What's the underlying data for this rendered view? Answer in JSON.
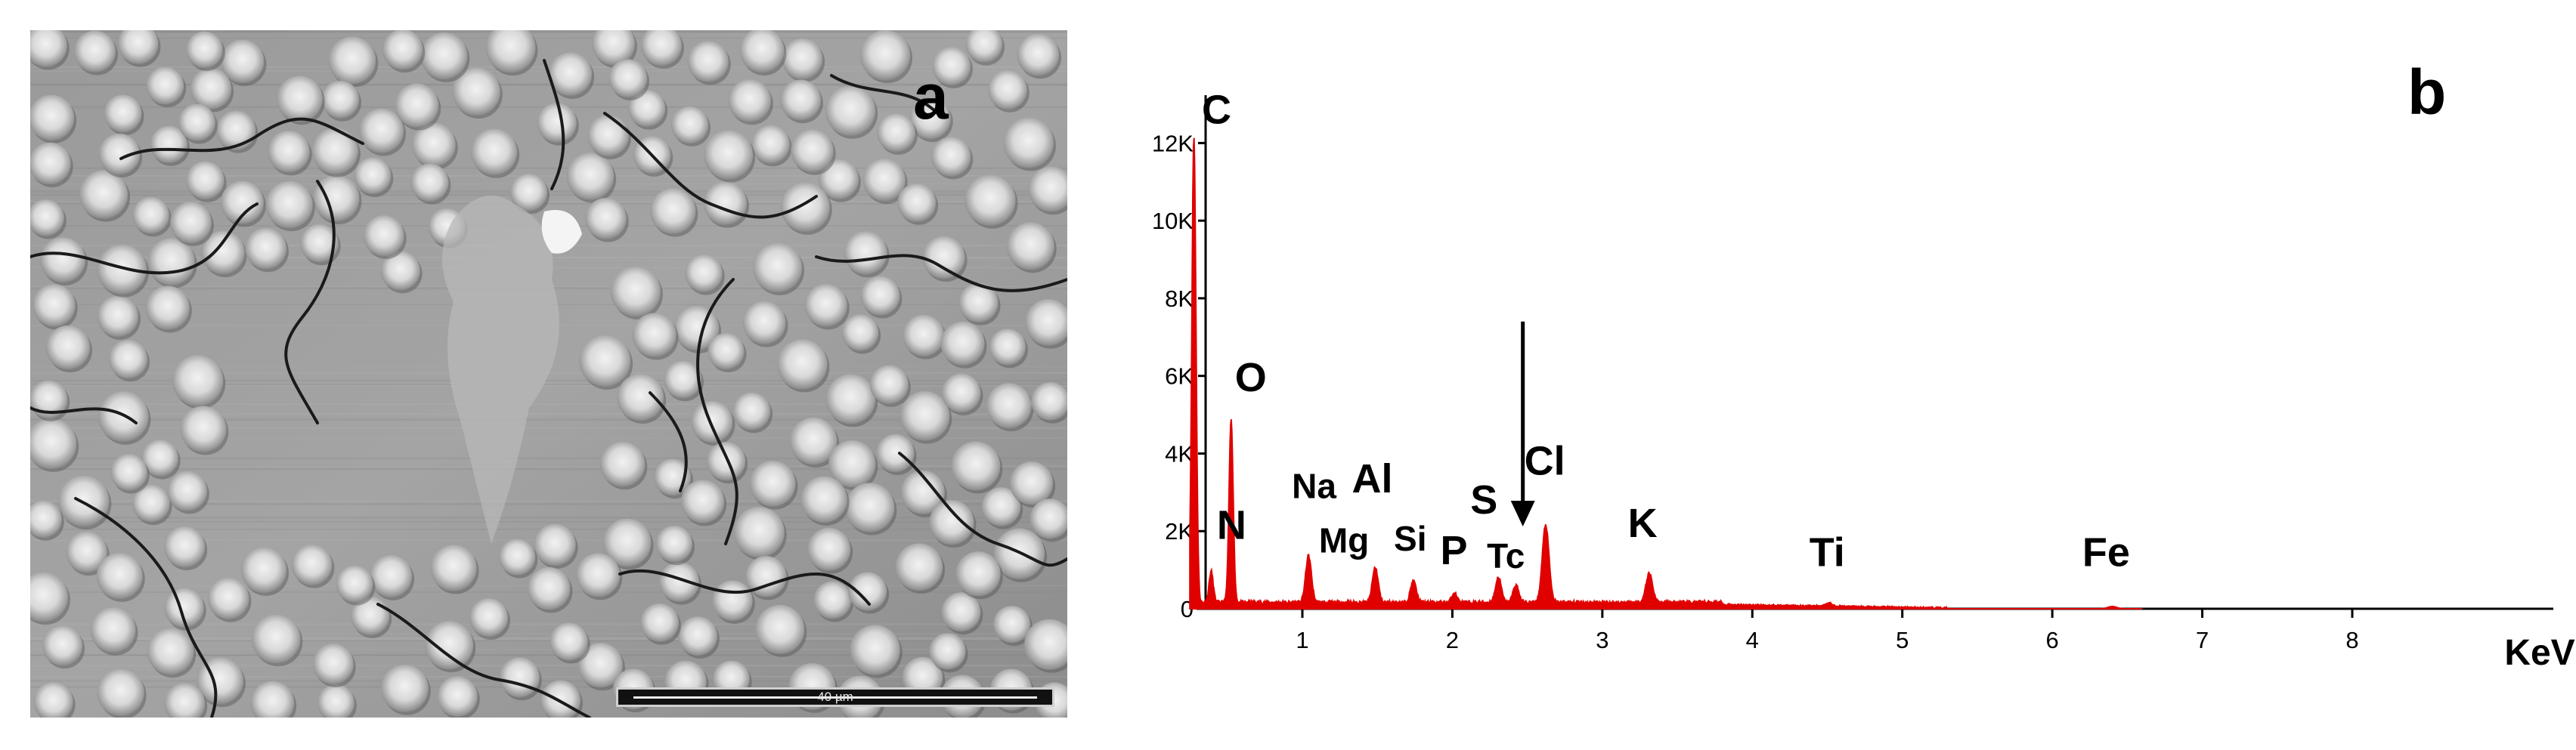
{
  "panel_a": {
    "label": "a",
    "scale_bar_label": "40 µm"
  },
  "panel_b": {
    "label": "b"
  },
  "chart_data": {
    "type": "line",
    "title": "",
    "xlabel": "KeV",
    "ylabel": "",
    "xlim": [
      0.25,
      8.7
    ],
    "ylim": [
      0,
      13000
    ],
    "x_ticks": [
      1,
      2,
      3,
      4,
      5,
      6,
      7,
      8
    ],
    "y_ticks": [
      {
        "value": 0,
        "label": "0"
      },
      {
        "value": 2000,
        "label": "2K"
      },
      {
        "value": 4000,
        "label": "4K"
      },
      {
        "value": 6000,
        "label": "6K"
      },
      {
        "value": 8000,
        "label": "8K"
      },
      {
        "value": 10000,
        "label": "10K"
      },
      {
        "value": 12000,
        "label": "12K"
      }
    ],
    "grid": false,
    "series_color": "#e00000",
    "peaks": [
      {
        "element": "C",
        "energy": 0.277,
        "counts": 12000,
        "width": 0.025
      },
      {
        "element": "N",
        "energy": 0.392,
        "counts": 800,
        "width": 0.025
      },
      {
        "element": "O",
        "energy": 0.525,
        "counts": 4700,
        "width": 0.025
      },
      {
        "element": "Na",
        "energy": 1.041,
        "counts": 1200,
        "width": 0.035
      },
      {
        "element": "Al",
        "energy": 1.486,
        "counts": 900,
        "width": 0.035
      },
      {
        "element": "Si",
        "energy": 1.74,
        "counts": 550,
        "width": 0.035
      },
      {
        "element": "P",
        "energy": 2.013,
        "counts": 250,
        "width": 0.03
      },
      {
        "element": "S",
        "energy": 2.307,
        "counts": 650,
        "width": 0.035
      },
      {
        "element": "Tc",
        "energy": 2.424,
        "counts": 450,
        "width": 0.035
      },
      {
        "element": "Cl",
        "energy": 2.622,
        "counts": 2000,
        "width": 0.04
      },
      {
        "element": "K",
        "energy": 3.313,
        "counts": 750,
        "width": 0.04
      },
      {
        "element": "Ti",
        "energy": 4.51,
        "counts": 80,
        "width": 0.045
      },
      {
        "element": "Fe",
        "energy": 6.4,
        "counts": 60,
        "width": 0.05
      }
    ],
    "annotations": [
      {
        "text": "C",
        "x": 0.33,
        "y": 12500
      },
      {
        "text": "O",
        "x": 0.55,
        "y": 5600
      },
      {
        "text": "N",
        "x": 0.43,
        "y": 1800
      },
      {
        "text": "Na",
        "x": 0.93,
        "y": 2850
      },
      {
        "text": "Al",
        "x": 1.33,
        "y": 3000
      },
      {
        "text": "Mg",
        "x": 1.11,
        "y": 1450
      },
      {
        "text": "Si",
        "x": 1.61,
        "y": 1500
      },
      {
        "text": "P",
        "x": 1.92,
        "y": 1150
      },
      {
        "text": "S",
        "x": 2.12,
        "y": 2450
      },
      {
        "text": "Tc",
        "x": 2.23,
        "y": 1050
      },
      {
        "text": "Cl",
        "x": 2.48,
        "y": 3450
      },
      {
        "text": "K",
        "x": 3.17,
        "y": 1850
      },
      {
        "text": "Ti",
        "x": 4.38,
        "y": 1100
      },
      {
        "text": "Fe",
        "x": 6.2,
        "y": 1100
      }
    ],
    "arrow": {
      "x": 2.47,
      "y_start": 7400,
      "y_end": 2200
    }
  }
}
